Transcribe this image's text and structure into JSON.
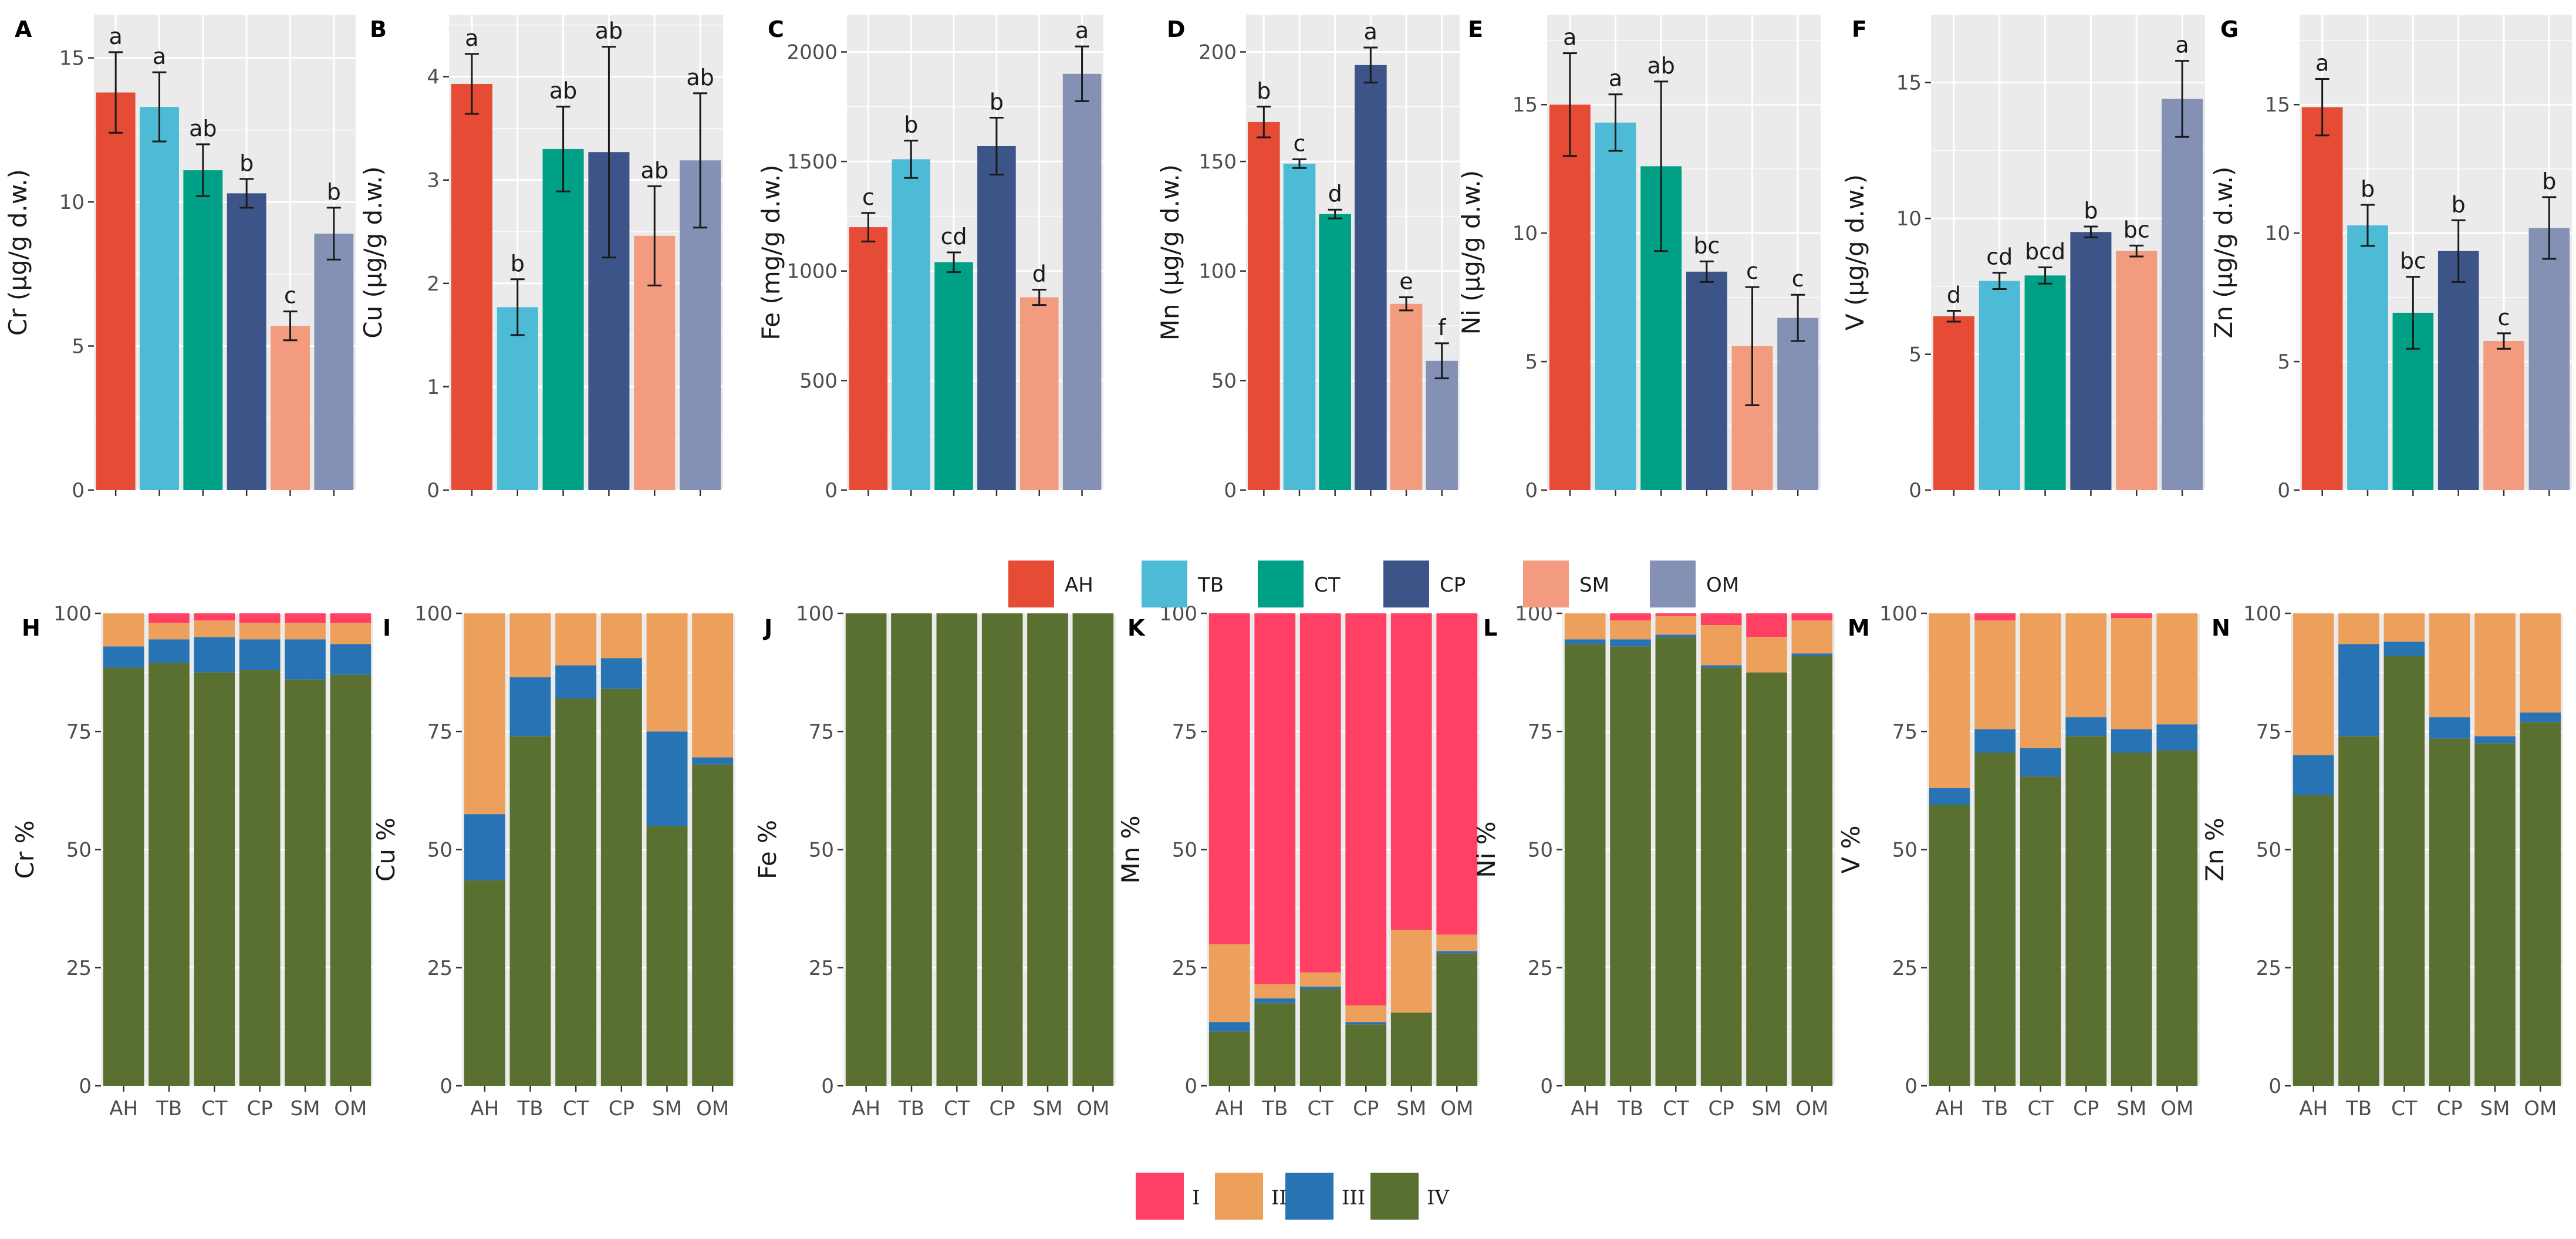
{
  "colors": {
    "AH": "#E64B35",
    "TB": "#4DBBD5",
    "CT": "#00A087",
    "CP": "#3C5488",
    "SM": "#F39B7F",
    "OM": "#8491B4",
    "I": "#FF4064",
    "II": "#EDA05C",
    "III": "#2873B3",
    "IV": "#5A7031"
  },
  "legend_top": {
    "items": [
      "AH",
      "TB",
      "CT",
      "CP",
      "SM",
      "OM"
    ]
  },
  "legend_bottom": {
    "items": [
      "I",
      "II",
      "III",
      "IV"
    ]
  },
  "chart_data": [
    {
      "id": "A",
      "type": "bar",
      "ylabel": "Cr (µg/g d.w.)",
      "categories": [
        "AH",
        "TB",
        "CT",
        "CP",
        "SM",
        "OM"
      ],
      "values": [
        13.8,
        13.3,
        11.1,
        10.3,
        5.7,
        8.9
      ],
      "errors": [
        1.4,
        1.2,
        0.9,
        0.5,
        0.5,
        0.9
      ],
      "labels": [
        "a",
        "a",
        "ab",
        "b",
        "c",
        "b"
      ],
      "ylim": [
        0,
        16.5
      ],
      "ticks": [
        0,
        5,
        10,
        15
      ],
      "tick_labels": [
        "0",
        "5",
        "10",
        "15"
      ]
    },
    {
      "id": "B",
      "type": "bar",
      "ylabel": "Cu (µg/g d.w.)",
      "categories": [
        "AH",
        "TB",
        "CT",
        "CP",
        "SM",
        "OM"
      ],
      "values": [
        3.93,
        1.77,
        3.3,
        3.27,
        2.46,
        3.19
      ],
      "errors": [
        0.29,
        0.27,
        0.41,
        1.02,
        0.48,
        0.65
      ],
      "labels": [
        "a",
        "b",
        "ab",
        "ab",
        "ab",
        "ab"
      ],
      "ylim": [
        0,
        4.6
      ],
      "ticks": [
        0,
        1,
        2,
        3,
        4
      ],
      "tick_labels": [
        "0",
        "1",
        "2",
        "3",
        "4"
      ]
    },
    {
      "id": "C",
      "type": "bar",
      "ylabel": "Fe (mg/g d.w.)",
      "categories": [
        "AH",
        "TB",
        "CT",
        "CP",
        "SM",
        "OM"
      ],
      "values": [
        1200,
        1510,
        1040,
        1570,
        880,
        1900
      ],
      "errors": [
        65,
        85,
        45,
        130,
        35,
        125
      ],
      "labels": [
        "c",
        "b",
        "cd",
        "b",
        "d",
        "a"
      ],
      "ylim": [
        0,
        2170
      ],
      "ticks": [
        0,
        500,
        1000,
        1500,
        2000
      ],
      "tick_labels": [
        "0",
        "500",
        "1000",
        "1500",
        "2000"
      ]
    },
    {
      "id": "D",
      "type": "bar",
      "ylabel": "Mn (µg/g d.w.)",
      "categories": [
        "AH",
        "TB",
        "CT",
        "CP",
        "SM",
        "OM"
      ],
      "values": [
        168,
        149,
        126,
        194,
        85,
        59
      ],
      "errors": [
        7,
        2,
        2,
        8,
        3,
        8
      ],
      "labels": [
        "b",
        "c",
        "d",
        "a",
        "e",
        "f"
      ],
      "ylim": [
        0,
        217
      ],
      "ticks": [
        0,
        50,
        100,
        150,
        200
      ],
      "tick_labels": [
        "0",
        "50",
        "100",
        "150",
        "200"
      ]
    },
    {
      "id": "E",
      "type": "bar",
      "ylabel": "Ni (µg/g d.w.)",
      "categories": [
        "AH",
        "TB",
        "CT",
        "CP",
        "SM",
        "OM"
      ],
      "values": [
        15.0,
        14.3,
        12.6,
        8.5,
        5.6,
        6.7
      ],
      "errors": [
        2.0,
        1.1,
        3.3,
        0.4,
        2.3,
        0.9
      ],
      "labels": [
        "a",
        "a",
        "ab",
        "bc",
        "c",
        "c"
      ],
      "ylim": [
        0,
        18.5
      ],
      "ticks": [
        0,
        5,
        10,
        15
      ],
      "tick_labels": [
        "0",
        "5",
        "10",
        "15"
      ]
    },
    {
      "id": "F",
      "type": "bar",
      "ylabel": "V (µg/g d.w.)",
      "categories": [
        "AH",
        "TB",
        "CT",
        "CP",
        "SM",
        "OM"
      ],
      "values": [
        6.4,
        7.7,
        7.9,
        9.5,
        8.8,
        14.4
      ],
      "errors": [
        0.2,
        0.3,
        0.3,
        0.2,
        0.2,
        1.4
      ],
      "labels": [
        "d",
        "cd",
        "bcd",
        "b",
        "bc",
        "a"
      ],
      "ylim": [
        0,
        17.5
      ],
      "ticks": [
        0,
        5,
        10,
        15
      ],
      "tick_labels": [
        "0",
        "5",
        "10",
        "15"
      ]
    },
    {
      "id": "G",
      "type": "bar",
      "ylabel": "Zn (µg/g d.w.)",
      "categories": [
        "AH",
        "TB",
        "CT",
        "CP",
        "SM",
        "OM"
      ],
      "values": [
        14.9,
        10.3,
        6.9,
        9.3,
        5.8,
        10.2
      ],
      "errors": [
        1.1,
        0.8,
        1.4,
        1.2,
        0.3,
        1.2
      ],
      "labels": [
        "a",
        "b",
        "bc",
        "b",
        "c",
        "b"
      ],
      "ylim": [
        0,
        18.5
      ],
      "ticks": [
        0,
        5,
        10,
        15
      ],
      "tick_labels": [
        "0",
        "5",
        "10",
        "15"
      ]
    },
    {
      "id": "H",
      "type": "stacked-bar",
      "ylabel": "Cr %",
      "categories": [
        "AH",
        "TB",
        "CT",
        "CP",
        "SM",
        "OM"
      ],
      "series": [
        {
          "name": "IV",
          "values": [
            88.5,
            89.5,
            87.5,
            88,
            86,
            87
          ]
        },
        {
          "name": "III",
          "values": [
            4.5,
            5,
            7.5,
            6.5,
            8.5,
            6.5
          ]
        },
        {
          "name": "II",
          "values": [
            7,
            3.5,
            3.5,
            3.5,
            3.5,
            4.5
          ]
        },
        {
          "name": "I",
          "values": [
            0,
            2,
            1.5,
            2,
            2,
            2
          ]
        }
      ],
      "ylim": [
        0,
        100
      ],
      "ticks": [
        0,
        25,
        50,
        75,
        100
      ],
      "tick_labels": [
        "0",
        "25",
        "50",
        "75",
        "100"
      ]
    },
    {
      "id": "I",
      "type": "stacked-bar",
      "ylabel": "Cu %",
      "categories": [
        "AH",
        "TB",
        "CT",
        "CP",
        "SM",
        "OM"
      ],
      "series": [
        {
          "name": "IV",
          "values": [
            43.5,
            74,
            82,
            84,
            55,
            68
          ]
        },
        {
          "name": "III",
          "values": [
            14,
            12.5,
            7,
            6.5,
            20,
            1.5
          ]
        },
        {
          "name": "II",
          "values": [
            42.5,
            13.5,
            11,
            9.5,
            25,
            30.5
          ]
        },
        {
          "name": "I",
          "values": [
            0,
            0,
            0,
            0,
            0,
            0
          ]
        }
      ],
      "ylim": [
        0,
        100
      ],
      "ticks": [
        0,
        25,
        50,
        75,
        100
      ],
      "tick_labels": [
        "0",
        "25",
        "50",
        "75",
        "100"
      ]
    },
    {
      "id": "J",
      "type": "stacked-bar",
      "ylabel": "Fe %",
      "categories": [
        "AH",
        "TB",
        "CT",
        "CP",
        "SM",
        "OM"
      ],
      "series": [
        {
          "name": "IV",
          "values": [
            100,
            100,
            100,
            100,
            100,
            100
          ]
        },
        {
          "name": "III",
          "values": [
            0,
            0,
            0,
            0,
            0,
            0
          ]
        },
        {
          "name": "II",
          "values": [
            0,
            0,
            0,
            0,
            0,
            0
          ]
        },
        {
          "name": "I",
          "values": [
            0,
            0,
            0,
            0,
            0,
            0
          ]
        }
      ],
      "ylim": [
        0,
        100
      ],
      "ticks": [
        0,
        25,
        50,
        75,
        100
      ],
      "tick_labels": [
        "0",
        "25",
        "50",
        "75",
        "100"
      ]
    },
    {
      "id": "K",
      "type": "stacked-bar",
      "ylabel": "Mn %",
      "categories": [
        "AH",
        "TB",
        "CT",
        "CP",
        "SM",
        "OM"
      ],
      "series": [
        {
          "name": "IV",
          "values": [
            11.5,
            17.5,
            20.5,
            13,
            15.5,
            28
          ]
        },
        {
          "name": "III",
          "values": [
            2,
            1,
            0.5,
            0.5,
            0,
            0.5
          ]
        },
        {
          "name": "II",
          "values": [
            16.5,
            3,
            3,
            3.5,
            17.5,
            3.5
          ]
        },
        {
          "name": "I",
          "values": [
            70,
            78.5,
            76,
            83,
            67,
            68
          ]
        }
      ],
      "ylim": [
        0,
        100
      ],
      "ticks": [
        0,
        25,
        50,
        75,
        100
      ],
      "tick_labels": [
        "0",
        "25",
        "50",
        "75",
        "100"
      ]
    },
    {
      "id": "L",
      "type": "stacked-bar",
      "ylabel": "Ni %",
      "categories": [
        "AH",
        "TB",
        "CT",
        "CP",
        "SM",
        "OM"
      ],
      "series": [
        {
          "name": "IV",
          "values": [
            93.5,
            93,
            95,
            88.5,
            87.5,
            91
          ]
        },
        {
          "name": "III",
          "values": [
            1,
            1.5,
            0.5,
            0.5,
            0,
            0.5
          ]
        },
        {
          "name": "II",
          "values": [
            5.5,
            4,
            4,
            8.5,
            7.5,
            7
          ]
        },
        {
          "name": "I",
          "values": [
            0,
            1.5,
            0.5,
            2.5,
            5,
            1.5
          ]
        }
      ],
      "ylim": [
        0,
        100
      ],
      "ticks": [
        0,
        25,
        50,
        75,
        100
      ],
      "tick_labels": [
        "0",
        "25",
        "50",
        "75",
        "100"
      ]
    },
    {
      "id": "M",
      "type": "stacked-bar",
      "ylabel": "V %",
      "categories": [
        "AH",
        "TB",
        "CT",
        "CP",
        "SM",
        "OM"
      ],
      "series": [
        {
          "name": "IV",
          "values": [
            59.5,
            70.5,
            65.5,
            74,
            70.5,
            71
          ]
        },
        {
          "name": "III",
          "values": [
            3.5,
            5,
            6,
            4,
            5,
            5.5
          ]
        },
        {
          "name": "II",
          "values": [
            37,
            23,
            28.5,
            22,
            23.5,
            23.5
          ]
        },
        {
          "name": "I",
          "values": [
            0,
            1.5,
            0,
            0,
            1,
            0
          ]
        }
      ],
      "ylim": [
        0,
        100
      ],
      "ticks": [
        0,
        25,
        50,
        75,
        100
      ],
      "tick_labels": [
        "0",
        "25",
        "50",
        "75",
        "100"
      ]
    },
    {
      "id": "N",
      "type": "stacked-bar",
      "ylabel": "Zn %",
      "categories": [
        "AH",
        "TB",
        "CT",
        "CP",
        "SM",
        "OM"
      ],
      "series": [
        {
          "name": "IV",
          "values": [
            61.5,
            74,
            91,
            73.5,
            72.5,
            77
          ]
        },
        {
          "name": "III",
          "values": [
            8.5,
            19.5,
            3,
            4.5,
            1.5,
            2
          ]
        },
        {
          "name": "II",
          "values": [
            30,
            6.5,
            6,
            22,
            26,
            21
          ]
        },
        {
          "name": "I",
          "values": [
            0,
            0,
            0,
            0,
            0,
            0
          ]
        }
      ],
      "ylim": [
        0,
        100
      ],
      "ticks": [
        0,
        25,
        50,
        75,
        100
      ],
      "tick_labels": [
        "0",
        "25",
        "50",
        "75",
        "100"
      ]
    }
  ]
}
